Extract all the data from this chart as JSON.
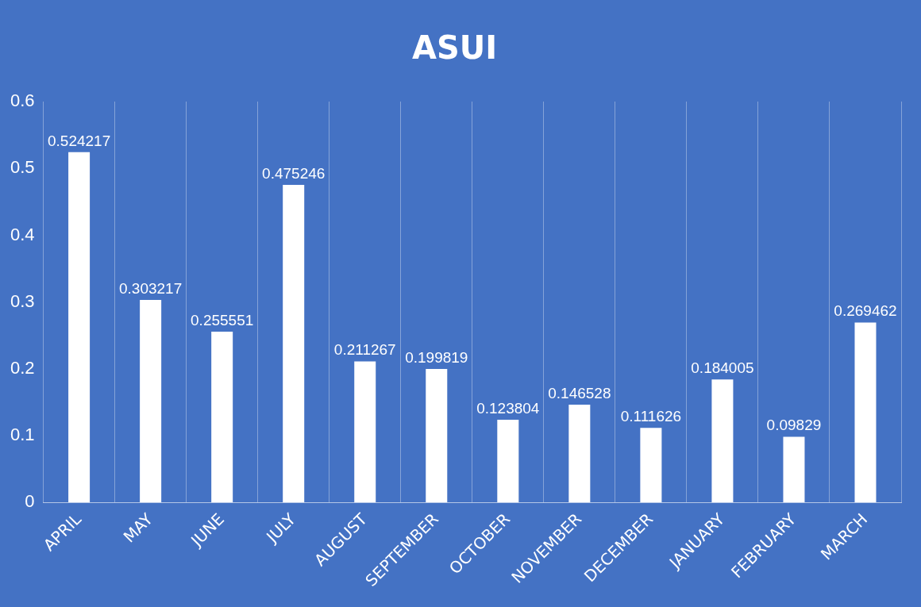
{
  "chart_data": {
    "type": "bar",
    "title": "ASUI",
    "categories": [
      "APRIL",
      "MAY",
      "JUNE",
      "JULY",
      "AUGUST",
      "SEPTEMBER",
      "OCTOBER",
      "NOVEMBER",
      "DECEMBER",
      "JANUARY",
      "FEBRUARY",
      "MARCH"
    ],
    "values": [
      0.524217,
      0.303217,
      0.255551,
      0.475246,
      0.211267,
      0.199819,
      0.123804,
      0.146528,
      0.111626,
      0.184005,
      0.09829,
      0.269462
    ],
    "color": "#ffffff",
    "ylim": [
      0,
      0.6
    ],
    "yticks": [
      0,
      0.1,
      0.2,
      0.3,
      0.4,
      0.5,
      0.6
    ],
    "grid": "x",
    "data_labels": true
  }
}
